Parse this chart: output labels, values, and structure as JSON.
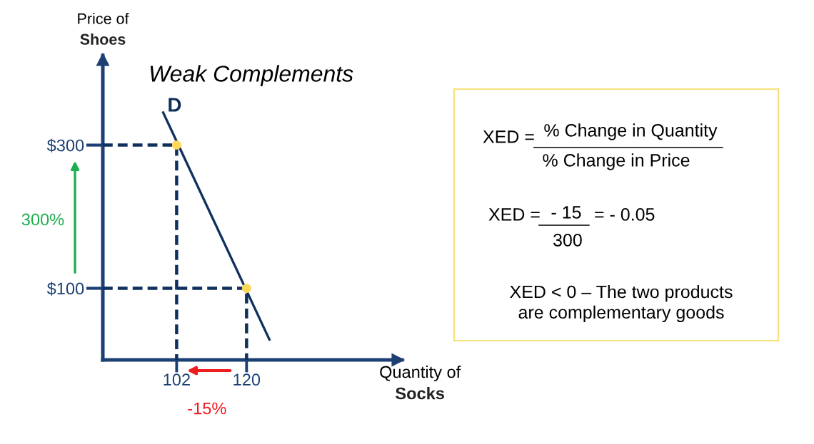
{
  "chart_data": [
    {
      "type": "line",
      "title": "Weak Complements",
      "xlabel": "Quantity of\nSocks",
      "ylabel": "Price of\nShoes",
      "xlim": [
        83,
        160
      ],
      "ylim": [
        0,
        425
      ],
      "xticks": [
        102,
        120
      ],
      "yticks": [
        {
          "value": 100,
          "label": "$100"
        },
        {
          "value": 300,
          "label": "$300"
        }
      ],
      "series": [
        {
          "name": "D",
          "type": "line",
          "color": "#0f2f5c",
          "x": [
            98.4,
            126
          ],
          "values": [
            347,
            27
          ]
        },
        {
          "type": "line",
          "line_style": "dashed",
          "color": "#0f2f5c",
          "x": [
            83,
            102,
            102
          ],
          "values": [
            300,
            300,
            0
          ]
        },
        {
          "type": "line",
          "line_style": "dashed",
          "color": "#0f2f5c",
          "x": [
            83,
            120,
            120
          ],
          "values": [
            100,
            100,
            0
          ]
        },
        {
          "type": "scatter",
          "marker": "circle",
          "color": "#fdd757",
          "x": [
            102,
            120
          ],
          "values": [
            300,
            100
          ]
        }
      ],
      "annotations": [
        "300%",
        "-15%"
      ]
    },
    {
      "type": "other",
      "annotations": [
        "XED =",
        "% Change in Quantity",
        "% Change in Price",
        "XED =",
        "- 15",
        "300",
        "= - 0.05",
        "XED < 0 – The two products\nare complementary goods"
      ]
    }
  ]
}
